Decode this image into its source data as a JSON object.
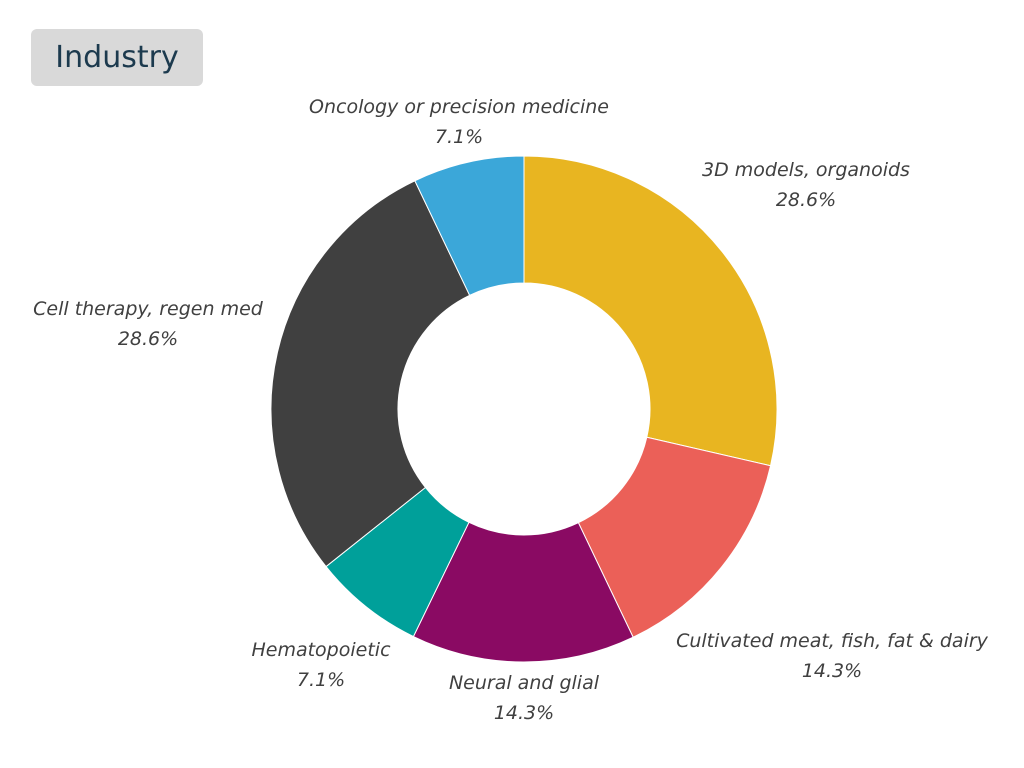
{
  "chart_data": {
    "type": "pie",
    "variant": "donut",
    "title": "Industry",
    "slices": [
      {
        "label": "3D models, organoids",
        "value": 28.6,
        "percent_label": "28.6%",
        "color": "#e8b521"
      },
      {
        "label": "Cultivated meat, fish, fat & dairy",
        "value": 14.3,
        "percent_label": "14.3%",
        "color": "#eb6058"
      },
      {
        "label": "Neural and glial",
        "value": 14.3,
        "percent_label": "14.3%",
        "color": "#8a0a63"
      },
      {
        "label": "Hematopoietic",
        "value": 7.1,
        "percent_label": "7.1%",
        "color": "#00a09a"
      },
      {
        "label": "Cell therapy, regen med",
        "value": 28.6,
        "percent_label": "28.6%",
        "color": "#404040"
      },
      {
        "label": "Oncology or precision medicine",
        "value": 7.1,
        "percent_label": "7.1%",
        "color": "#3ba7d9"
      }
    ],
    "start": "12 o'clock",
    "direction": "clockwise",
    "legend": "none"
  }
}
